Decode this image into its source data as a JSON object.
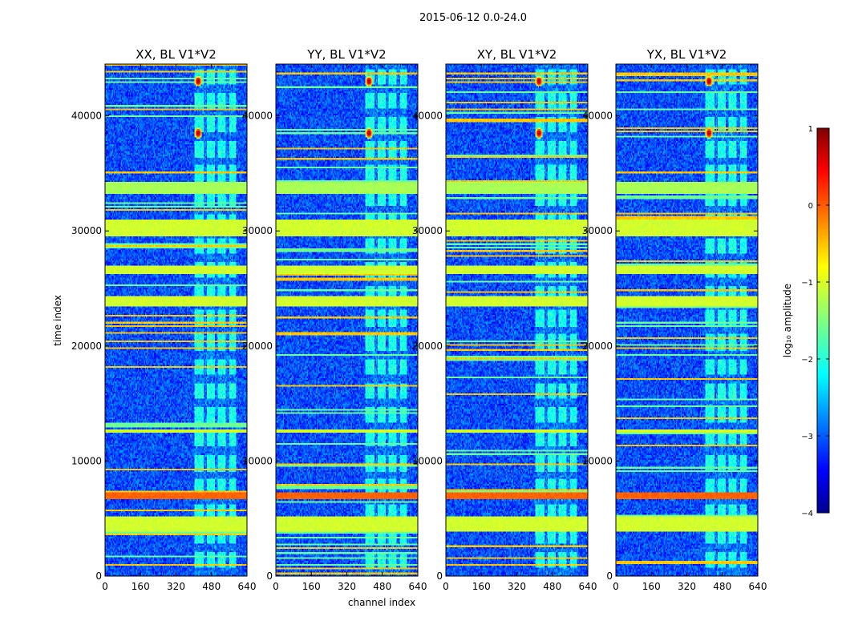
{
  "figure": {
    "suptitle": "2015-06-12 0.0-24.0",
    "xlabel": "channel index",
    "ylabel": "time index",
    "colorbar_label": "log₁₀ amplitude"
  },
  "chart_data": {
    "type": "heatmap",
    "suptitle": "2015-06-12 0.0-24.0",
    "xlabel": "channel index",
    "ylabel": "time index",
    "xlim": [
      0,
      640
    ],
    "ylim": [
      0,
      44500
    ],
    "xticks": [
      0,
      160,
      320,
      480,
      640
    ],
    "yticks": [
      0,
      10000,
      20000,
      30000,
      40000
    ],
    "colormap": "jet",
    "colorbar": {
      "label": "log₁₀ amplitude",
      "range": [
        -4,
        1
      ],
      "ticks": [
        -4,
        -3,
        -2,
        -1,
        0,
        1
      ],
      "tick_labels": [
        "−4",
        "−3",
        "−2",
        "−1",
        "0",
        "1"
      ]
    },
    "panels": [
      {
        "title": "XX, BL V1*V2"
      },
      {
        "title": "YY, BL V1*V2"
      },
      {
        "title": "XY, BL V1*V2"
      },
      {
        "title": "YX, BL V1*V2"
      }
    ],
    "features": {
      "background_level": -3,
      "rfi_channel_range": [
        405,
        590
      ],
      "rfi_sub_bands": [
        [
          405,
          445
        ],
        [
          460,
          495
        ],
        [
          510,
          545
        ],
        [
          560,
          590
        ]
      ],
      "rfi_level": -2,
      "bright_spot_channels": [
        420
      ],
      "bright_spot_times": [
        43000,
        38500
      ],
      "bright_spot_level": 0.8,
      "flagged_bands": [
        {
          "t0": 3800,
          "t1": 5200,
          "level": -1.1
        },
        {
          "t0": 6700,
          "t1": 7200,
          "level": -0.1
        },
        {
          "t0": 12400,
          "t1": 12700,
          "level": -1.1
        },
        {
          "t0": 23500,
          "t1": 24300,
          "level": -1.1
        },
        {
          "t0": 26300,
          "t1": 27000,
          "level": -1.1
        },
        {
          "t0": 29500,
          "t1": 31000,
          "level": -1.1
        },
        {
          "t0": 33200,
          "t1": 34200,
          "level": -1.3
        }
      ]
    }
  }
}
